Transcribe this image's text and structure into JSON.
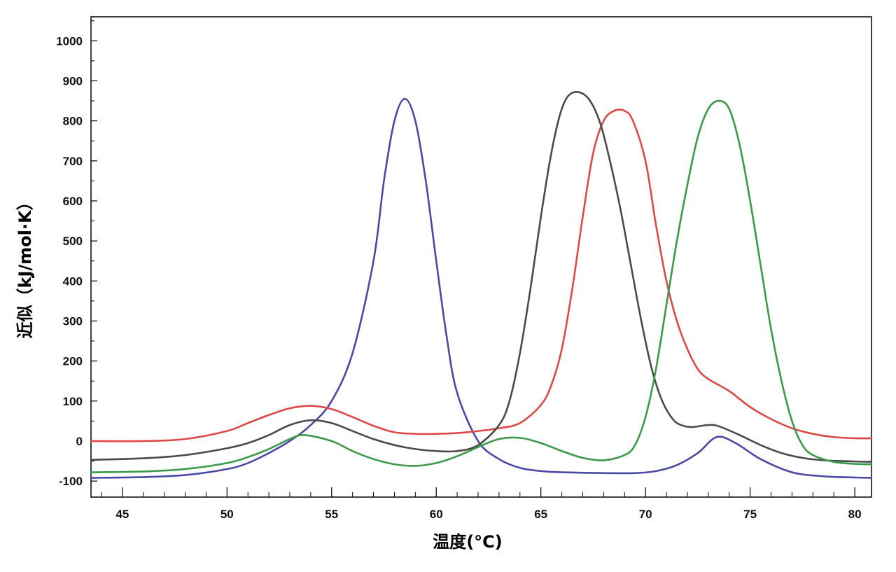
{
  "chart_data": {
    "type": "line",
    "xlabel": "温度(°C)",
    "ylabel": "近似（kJ/mol·K）",
    "xlim": [
      43.5,
      80.8
    ],
    "ylim": [
      -140,
      1060
    ],
    "x_ticks": [
      45,
      50,
      55,
      60,
      65,
      70,
      75,
      80
    ],
    "y_ticks": [
      -100,
      0,
      100,
      200,
      300,
      400,
      500,
      600,
      700,
      800,
      900,
      1000
    ],
    "grid": false,
    "legend": "none",
    "series": [
      {
        "color": "#4a4aa6",
        "x": [
          43.5,
          46,
          48,
          50,
          51,
          52,
          53,
          54,
          55,
          56,
          57,
          57.5,
          58,
          58.5,
          59,
          59.5,
          60,
          60.5,
          61,
          62,
          63,
          64,
          65,
          66,
          68,
          69.5,
          70.5,
          71.5,
          72.5,
          73.4,
          74.3,
          75.5,
          77,
          78.5,
          80,
          80.8
        ],
        "y": [
          -92,
          -90,
          -85,
          -70,
          -55,
          -30,
          0,
          40,
          100,
          220,
          450,
          650,
          800,
          855,
          800,
          650,
          450,
          260,
          120,
          0,
          -45,
          -67,
          -75,
          -78,
          -80,
          -80,
          -75,
          -60,
          -30,
          10,
          -5,
          -45,
          -78,
          -88,
          -91,
          -92
        ]
      },
      {
        "color": "#e04848",
        "x": [
          43.5,
          46,
          48,
          50,
          51,
          52,
          53,
          54,
          55,
          56,
          57,
          58,
          59,
          60,
          61,
          62,
          63,
          64,
          65,
          65.5,
          66,
          66.5,
          67,
          67.5,
          68,
          68.5,
          69,
          69.4,
          70,
          70.5,
          71,
          71.5,
          72,
          72.5,
          73,
          74,
          75,
          76,
          77,
          78,
          79,
          80,
          80.8
        ],
        "y": [
          0,
          0,
          5,
          25,
          45,
          65,
          82,
          88,
          80,
          60,
          38,
          22,
          18,
          18,
          20,
          25,
          32,
          45,
          90,
          140,
          230,
          380,
          560,
          720,
          800,
          825,
          825,
          800,
          700,
          540,
          400,
          300,
          230,
          180,
          155,
          125,
          85,
          55,
          32,
          18,
          10,
          7,
          7
        ]
      },
      {
        "color": "#4a4a4a",
        "x": [
          43.5,
          46,
          48,
          50,
          51,
          52,
          53,
          54,
          55,
          56,
          57,
          58,
          59,
          60,
          61,
          62,
          63,
          63.5,
          64,
          64.5,
          65,
          65.5,
          66,
          66.5,
          67.2,
          67.8,
          68.3,
          68.8,
          69.3,
          69.8,
          70.3,
          70.8,
          71.3,
          71.7,
          72.2,
          73,
          73.5,
          74.5,
          75.5,
          76.5,
          77.5,
          78.5,
          80,
          80.8
        ],
        "y": [
          -47,
          -43,
          -35,
          -18,
          -5,
          15,
          40,
          52,
          45,
          25,
          5,
          -10,
          -20,
          -25,
          -25,
          -10,
          40,
          100,
          220,
          380,
          560,
          720,
          830,
          870,
          860,
          800,
          700,
          580,
          440,
          300,
          180,
          100,
          55,
          40,
          35,
          40,
          37,
          15,
          -10,
          -30,
          -42,
          -48,
          -51,
          -52
        ]
      },
      {
        "color": "#3a9a48",
        "x": [
          43.5,
          46,
          48,
          50,
          51,
          52,
          53,
          53.7,
          55,
          56,
          57,
          58,
          59,
          60,
          61,
          62,
          63,
          64,
          65,
          66,
          67,
          68,
          69,
          69.5,
          70,
          70.5,
          71,
          71.5,
          72,
          72.5,
          73,
          73.5,
          74,
          74.5,
          75,
          75.5,
          76,
          76.5,
          77,
          77.5,
          78,
          79,
          80,
          80.8
        ],
        "y": [
          -78,
          -76,
          -70,
          -55,
          -40,
          -20,
          5,
          15,
          0,
          -25,
          -45,
          -58,
          -62,
          -55,
          -38,
          -15,
          5,
          8,
          -5,
          -25,
          -42,
          -48,
          -35,
          -10,
          60,
          180,
          340,
          500,
          640,
          760,
          830,
          850,
          830,
          740,
          600,
          440,
          280,
          150,
          50,
          -10,
          -35,
          -52,
          -57,
          -58
        ]
      }
    ]
  }
}
